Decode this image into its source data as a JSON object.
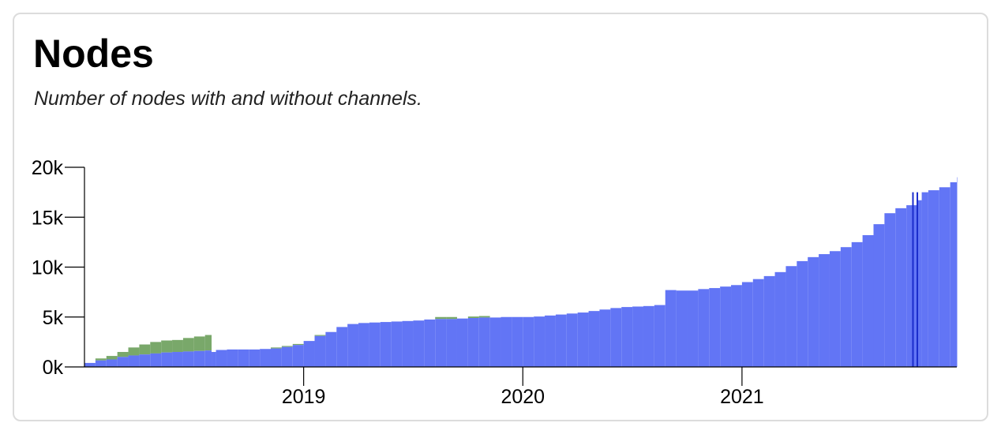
{
  "card": {
    "title": "Nodes",
    "subtitle": "Number of nodes with and without channels."
  },
  "chart_data": {
    "type": "bar",
    "title": "Nodes",
    "subtitle": "Number of nodes with and without channels.",
    "xlabel": "",
    "ylabel": "",
    "ylim": [
      0,
      20000
    ],
    "y_ticks": [
      {
        "value": 0,
        "label": "0k"
      },
      {
        "value": 5000,
        "label": "5k"
      },
      {
        "value": 10000,
        "label": "10k"
      },
      {
        "value": 15000,
        "label": "15k"
      },
      {
        "value": 20000,
        "label": "20k"
      }
    ],
    "x_ticks": [
      {
        "value": 2019,
        "label": "2019"
      },
      {
        "value": 2020,
        "label": "2020"
      },
      {
        "value": 2021,
        "label": "2021"
      }
    ],
    "grid": false,
    "legend": "none",
    "colors": {
      "with_channels": "#6275f5",
      "without_channels": "#79a86a",
      "highlight": "#1a2ccc"
    },
    "x": [
      2018.0,
      2018.05,
      2018.1,
      2018.15,
      2018.2,
      2018.25,
      2018.3,
      2018.35,
      2018.4,
      2018.45,
      2018.5,
      2018.55,
      2018.58,
      2018.6,
      2018.65,
      2018.7,
      2018.75,
      2018.8,
      2018.85,
      2018.9,
      2018.95,
      2019.0,
      2019.05,
      2019.1,
      2019.15,
      2019.2,
      2019.25,
      2019.3,
      2019.35,
      2019.4,
      2019.45,
      2019.5,
      2019.55,
      2019.6,
      2019.65,
      2019.7,
      2019.75,
      2019.8,
      2019.85,
      2019.9,
      2019.95,
      2020.0,
      2020.05,
      2020.1,
      2020.15,
      2020.2,
      2020.25,
      2020.3,
      2020.35,
      2020.4,
      2020.45,
      2020.5,
      2020.55,
      2020.6,
      2020.65,
      2020.7,
      2020.75,
      2020.8,
      2020.85,
      2020.9,
      2020.95,
      2021.0,
      2021.05,
      2021.1,
      2021.15,
      2021.2,
      2021.25,
      2021.3,
      2021.35,
      2021.4,
      2021.45,
      2021.5,
      2021.55,
      2021.6,
      2021.65,
      2021.7,
      2021.75,
      2021.8,
      2021.82,
      2021.85,
      2021.9,
      2021.95,
      2021.98
    ],
    "series": [
      {
        "name": "",
        "color_key": "with_channels",
        "values": [
          400,
          650,
          750,
          1000,
          1150,
          1250,
          1350,
          1450,
          1500,
          1550,
          1600,
          1650,
          1500,
          1700,
          1750,
          1750,
          1750,
          1800,
          1850,
          2000,
          2200,
          2600,
          3100,
          3500,
          4000,
          4300,
          4400,
          4450,
          4500,
          4550,
          4600,
          4650,
          4750,
          4800,
          4800,
          4850,
          4900,
          4950,
          4950,
          5000,
          5000,
          5000,
          5050,
          5150,
          5250,
          5350,
          5450,
          5600,
          5750,
          5900,
          6000,
          6050,
          6100,
          6200,
          7700,
          7650,
          7650,
          7800,
          7900,
          8050,
          8200,
          8500,
          8800,
          9100,
          9500,
          10100,
          10600,
          11000,
          11300,
          11600,
          12000,
          12500,
          13200,
          14300,
          15400,
          15900,
          16200,
          16700,
          17500,
          17700,
          18000,
          18500,
          19000
        ]
      },
      {
        "name": "",
        "color_key": "without_channels",
        "values": [
          0,
          200,
          350,
          500,
          800,
          1000,
          1150,
          1200,
          1200,
          1350,
          1450,
          1550,
          0,
          0,
          0,
          0,
          0,
          0,
          100,
          100,
          100,
          0,
          100,
          0,
          0,
          0,
          0,
          0,
          0,
          0,
          0,
          0,
          0,
          200,
          200,
          0,
          150,
          150,
          0,
          0,
          0,
          0,
          0,
          0,
          0,
          0,
          0,
          0,
          0,
          0,
          0,
          0,
          0,
          0,
          0,
          0,
          0,
          0,
          0,
          0,
          0,
          0,
          0,
          0,
          0,
          0,
          0,
          0,
          0,
          0,
          0,
          0,
          0,
          0,
          0,
          0,
          0,
          0,
          0,
          0,
          0,
          0,
          0
        ]
      }
    ],
    "highlight_x": [
      2021.78,
      2021.8
    ]
  }
}
